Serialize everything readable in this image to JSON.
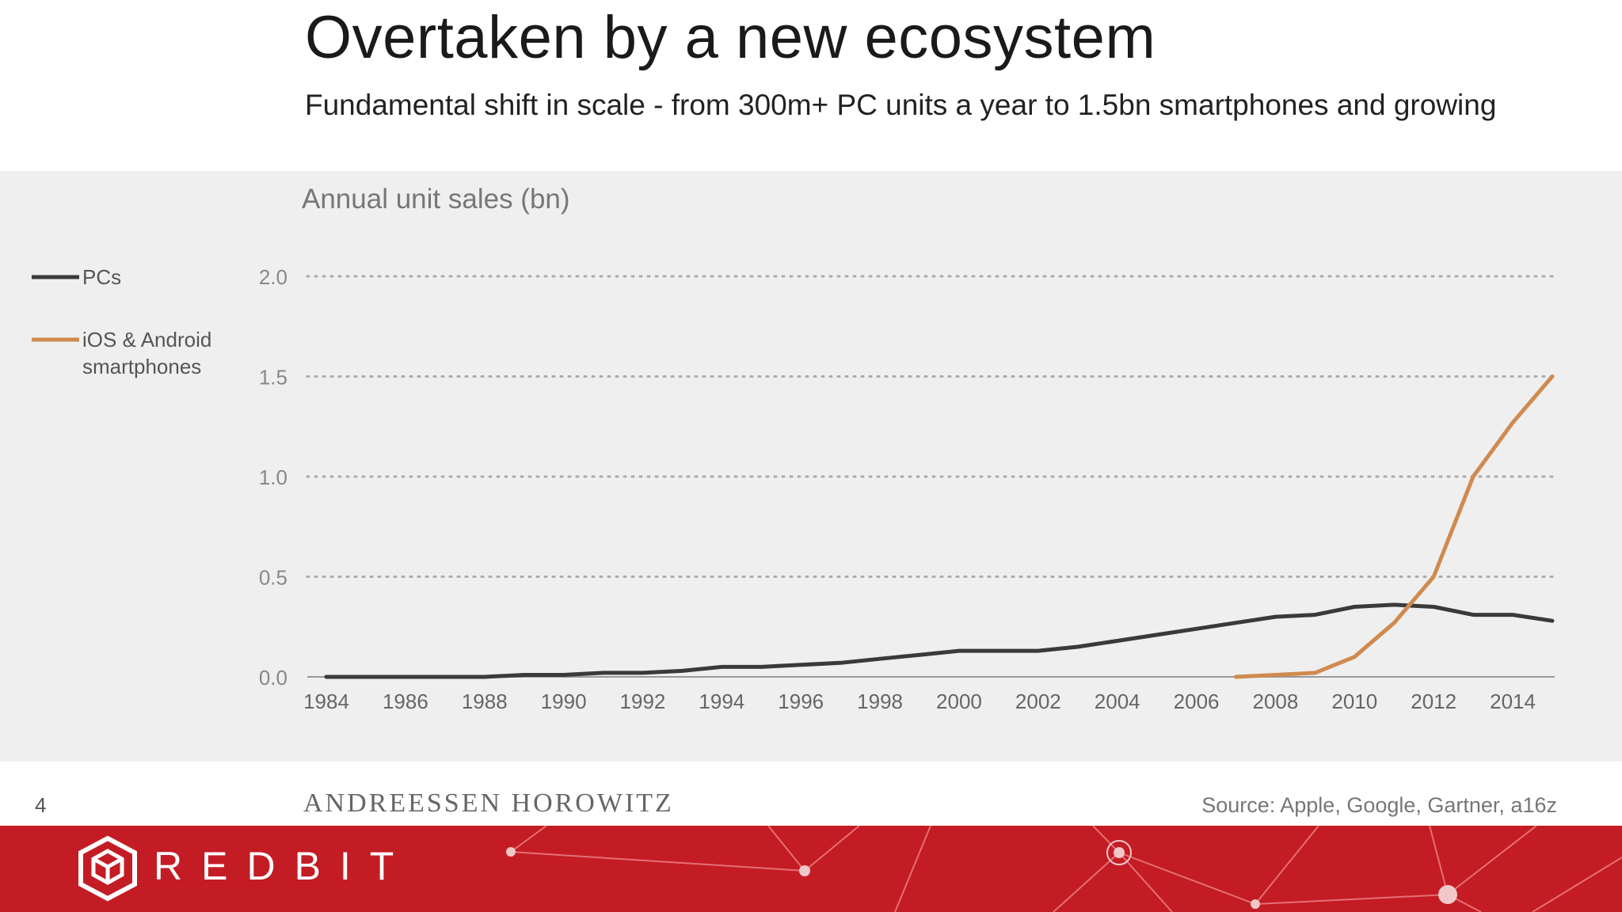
{
  "slide": {
    "title": "Overtaken by a new ecosystem",
    "subtitle": "Fundamental shift in scale - from 300m+ PC units a year to 1.5bn smartphones and growing",
    "page_number": "4",
    "firm": "ANDREESSEN  HOROWITZ",
    "source": "Source: Apple, Google, Gartner, a16z"
  },
  "brand": {
    "name": "REDBIT",
    "color": "#c41c24"
  },
  "chart_data": {
    "type": "line",
    "title": "Annual unit sales (bn)",
    "ylim": [
      0,
      2.0
    ],
    "yticks": [
      "0.0",
      "0.5",
      "1.0",
      "1.5",
      "2.0"
    ],
    "xlim": [
      1984,
      2015
    ],
    "xticks": [
      "1984",
      "1986",
      "1988",
      "1990",
      "1992",
      "1994",
      "1996",
      "1998",
      "2000",
      "2002",
      "2004",
      "2006",
      "2008",
      "2010",
      "2012",
      "2014"
    ],
    "grid": true,
    "legend_position": "left",
    "series": [
      {
        "name": "PCs",
        "color": "#3a3a3a",
        "points": [
          [
            1984,
            0.0
          ],
          [
            1986,
            0.0
          ],
          [
            1988,
            0.0
          ],
          [
            1989,
            0.01
          ],
          [
            1990,
            0.01
          ],
          [
            1991,
            0.02
          ],
          [
            1992,
            0.02
          ],
          [
            1993,
            0.03
          ],
          [
            1994,
            0.05
          ],
          [
            1995,
            0.05
          ],
          [
            1996,
            0.06
          ],
          [
            1997,
            0.07
          ],
          [
            1998,
            0.09
          ],
          [
            1999,
            0.11
          ],
          [
            2000,
            0.13
          ],
          [
            2001,
            0.13
          ],
          [
            2002,
            0.13
          ],
          [
            2003,
            0.15
          ],
          [
            2004,
            0.18
          ],
          [
            2005,
            0.21
          ],
          [
            2006,
            0.24
          ],
          [
            2007,
            0.27
          ],
          [
            2008,
            0.3
          ],
          [
            2009,
            0.31
          ],
          [
            2010,
            0.35
          ],
          [
            2011,
            0.36
          ],
          [
            2012,
            0.35
          ],
          [
            2013,
            0.31
          ],
          [
            2014,
            0.31
          ],
          [
            2015,
            0.28
          ]
        ]
      },
      {
        "name": "iOS & Android smartphones",
        "color": "#d08a4f",
        "points": [
          [
            2007,
            0.0
          ],
          [
            2008,
            0.01
          ],
          [
            2009,
            0.02
          ],
          [
            2010,
            0.1
          ],
          [
            2011,
            0.27
          ],
          [
            2012,
            0.5
          ],
          [
            2013,
            1.0
          ],
          [
            2014,
            1.27
          ],
          [
            2015,
            1.5
          ]
        ]
      }
    ]
  }
}
